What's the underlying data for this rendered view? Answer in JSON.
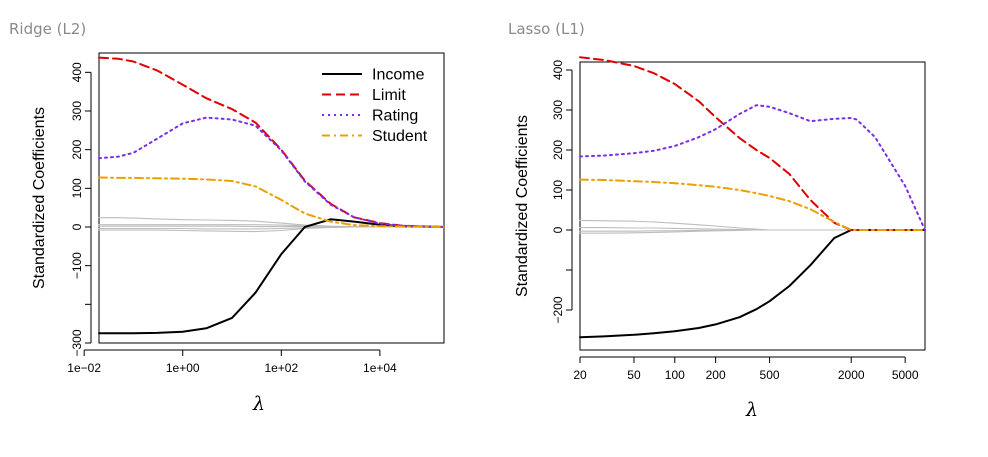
{
  "captions": {
    "left": "Ridge (L2)",
    "right": "Lasso (L1)"
  },
  "chart_data": [
    {
      "type": "line",
      "title": "Ridge (L2)",
      "xlabel": "λ",
      "ylabel": "Standardized Coefficients",
      "xscale": "log",
      "xlim": [
        0.02,
        200000
      ],
      "ylim": [
        -300,
        450
      ],
      "xticks": [
        {
          "value": 0.01,
          "label": "1e−02"
        },
        {
          "value": 1,
          "label": "1e+00"
        },
        {
          "value": 100,
          "label": "1e+02"
        },
        {
          "value": 10000,
          "label": "1e+04"
        }
      ],
      "yticks": [
        {
          "value": -300,
          "label": "−300"
        },
        {
          "value": -200,
          "label": ""
        },
        {
          "value": -100,
          "label": "−100"
        },
        {
          "value": 0,
          "label": "0"
        },
        {
          "value": 100,
          "label": "100"
        },
        {
          "value": 200,
          "label": "200"
        },
        {
          "value": 300,
          "label": "300"
        },
        {
          "value": 400,
          "label": "400"
        }
      ],
      "grid": false,
      "legend": "top-right",
      "x": [
        0.02,
        0.05,
        0.1,
        0.3,
        1,
        3,
        10,
        30,
        100,
        300,
        1000,
        3000,
        10000,
        30000,
        200000
      ],
      "series": [
        {
          "name": "Income",
          "color": "#000000",
          "dash": "solid",
          "values": [
            -275,
            -275,
            -275,
            -274,
            -271,
            -262,
            -235,
            -170,
            -70,
            0,
            20,
            14,
            6,
            2,
            0
          ]
        },
        {
          "name": "Limit",
          "color": "#e00000",
          "dash": "dashed",
          "values": [
            438,
            435,
            428,
            405,
            368,
            333,
            305,
            270,
            200,
            120,
            60,
            25,
            10,
            3,
            0
          ]
        },
        {
          "name": "Rating",
          "color": "#7a2ee8",
          "dash": "dotted",
          "values": [
            178,
            182,
            192,
            228,
            268,
            283,
            278,
            262,
            198,
            118,
            58,
            25,
            9,
            3,
            0
          ]
        },
        {
          "name": "Student",
          "color": "#eba000",
          "dash": "dashdot",
          "values": [
            128,
            127,
            127,
            126,
            125,
            123,
            119,
            105,
            70,
            35,
            14,
            5,
            2,
            1,
            0
          ]
        },
        {
          "name": "",
          "color": "#bdbdbd",
          "dash": "solid",
          "values": [
            24,
            24,
            23,
            21,
            19,
            18,
            17,
            15,
            10,
            5,
            2,
            1,
            0,
            0,
            0
          ]
        },
        {
          "name": "",
          "color": "#bdbdbd",
          "dash": "solid",
          "values": [
            6,
            6,
            6,
            6,
            6,
            6,
            6,
            6,
            5,
            3,
            1,
            0,
            0,
            0,
            0
          ]
        },
        {
          "name": "",
          "color": "#bdbdbd",
          "dash": "solid",
          "values": [
            2,
            2,
            2,
            2,
            2,
            2,
            2,
            1,
            1,
            1,
            0,
            0,
            0,
            0,
            0
          ]
        },
        {
          "name": "",
          "color": "#bdbdbd",
          "dash": "solid",
          "values": [
            -4,
            -4,
            -4,
            -4,
            -4,
            -5,
            -5,
            -5,
            -4,
            -2,
            -1,
            0,
            0,
            0,
            0
          ]
        },
        {
          "name": "",
          "color": "#bdbdbd",
          "dash": "solid",
          "values": [
            -8,
            -8,
            -8,
            -8,
            -9,
            -10,
            -11,
            -12,
            -9,
            -4,
            -1,
            0,
            0,
            0,
            0
          ]
        }
      ]
    },
    {
      "type": "line",
      "title": "Lasso (L1)",
      "xlabel": "λ",
      "ylabel": "Standardized Coefficients",
      "xscale": "log",
      "xlim": [
        20,
        7000
      ],
      "ylim": [
        -300,
        420
      ],
      "xticks": [
        {
          "value": 20,
          "label": "20"
        },
        {
          "value": 50,
          "label": "50"
        },
        {
          "value": 100,
          "label": "100"
        },
        {
          "value": 200,
          "label": "200"
        },
        {
          "value": 500,
          "label": "500"
        },
        {
          "value": 2000,
          "label": "2000"
        },
        {
          "value": 5000,
          "label": "5000"
        }
      ],
      "yticks": [
        {
          "value": -200,
          "label": "−200"
        },
        {
          "value": -100,
          "label": ""
        },
        {
          "value": 0,
          "label": "0"
        },
        {
          "value": 100,
          "label": "100"
        },
        {
          "value": 200,
          "label": "200"
        },
        {
          "value": 300,
          "label": "300"
        },
        {
          "value": 400,
          "label": "400"
        }
      ],
      "grid": false,
      "legend": "none",
      "x": [
        20,
        30,
        50,
        70,
        100,
        150,
        200,
        300,
        400,
        500,
        700,
        1000,
        1500,
        2000,
        2200,
        3000,
        5000,
        7000
      ],
      "series": [
        {
          "name": "Income",
          "color": "#000000",
          "dash": "solid",
          "values": [
            -268,
            -266,
            -262,
            -258,
            -253,
            -245,
            -236,
            -218,
            -198,
            -178,
            -140,
            -88,
            -20,
            0,
            0,
            0,
            0,
            0
          ]
        },
        {
          "name": "Limit",
          "color": "#e00000",
          "dash": "dashed",
          "values": [
            432,
            425,
            410,
            392,
            365,
            322,
            282,
            230,
            200,
            180,
            140,
            75,
            18,
            0,
            0,
            0,
            0,
            0
          ]
        },
        {
          "name": "Rating",
          "color": "#7a2ee8",
          "dash": "dotted",
          "values": [
            184,
            186,
            192,
            198,
            210,
            232,
            252,
            290,
            312,
            308,
            292,
            272,
            278,
            280,
            276,
            232,
            110,
            0
          ]
        },
        {
          "name": "Student",
          "color": "#eba000",
          "dash": "dashdot",
          "values": [
            126,
            125,
            122,
            120,
            117,
            112,
            108,
            100,
            92,
            85,
            72,
            52,
            20,
            0,
            0,
            0,
            0,
            0
          ]
        },
        {
          "name": "",
          "color": "#bdbdbd",
          "dash": "solid",
          "values": [
            24,
            23,
            22,
            20,
            17,
            13,
            10,
            5,
            2,
            0,
            0,
            0,
            0,
            0,
            0,
            0,
            0,
            0
          ]
        },
        {
          "name": "",
          "color": "#bdbdbd",
          "dash": "solid",
          "values": [
            6,
            6,
            5,
            5,
            4,
            3,
            2,
            1,
            0,
            0,
            0,
            0,
            0,
            0,
            0,
            0,
            0,
            0
          ]
        },
        {
          "name": "",
          "color": "#bdbdbd",
          "dash": "solid",
          "values": [
            -3,
            -3,
            -3,
            -2,
            -2,
            -1,
            -1,
            0,
            0,
            0,
            0,
            0,
            0,
            0,
            0,
            0,
            0,
            0
          ]
        },
        {
          "name": "",
          "color": "#bdbdbd",
          "dash": "solid",
          "values": [
            -8,
            -8,
            -7,
            -6,
            -5,
            -3,
            -2,
            -1,
            0,
            0,
            0,
            0,
            0,
            0,
            0,
            0,
            0,
            0
          ]
        }
      ]
    }
  ]
}
